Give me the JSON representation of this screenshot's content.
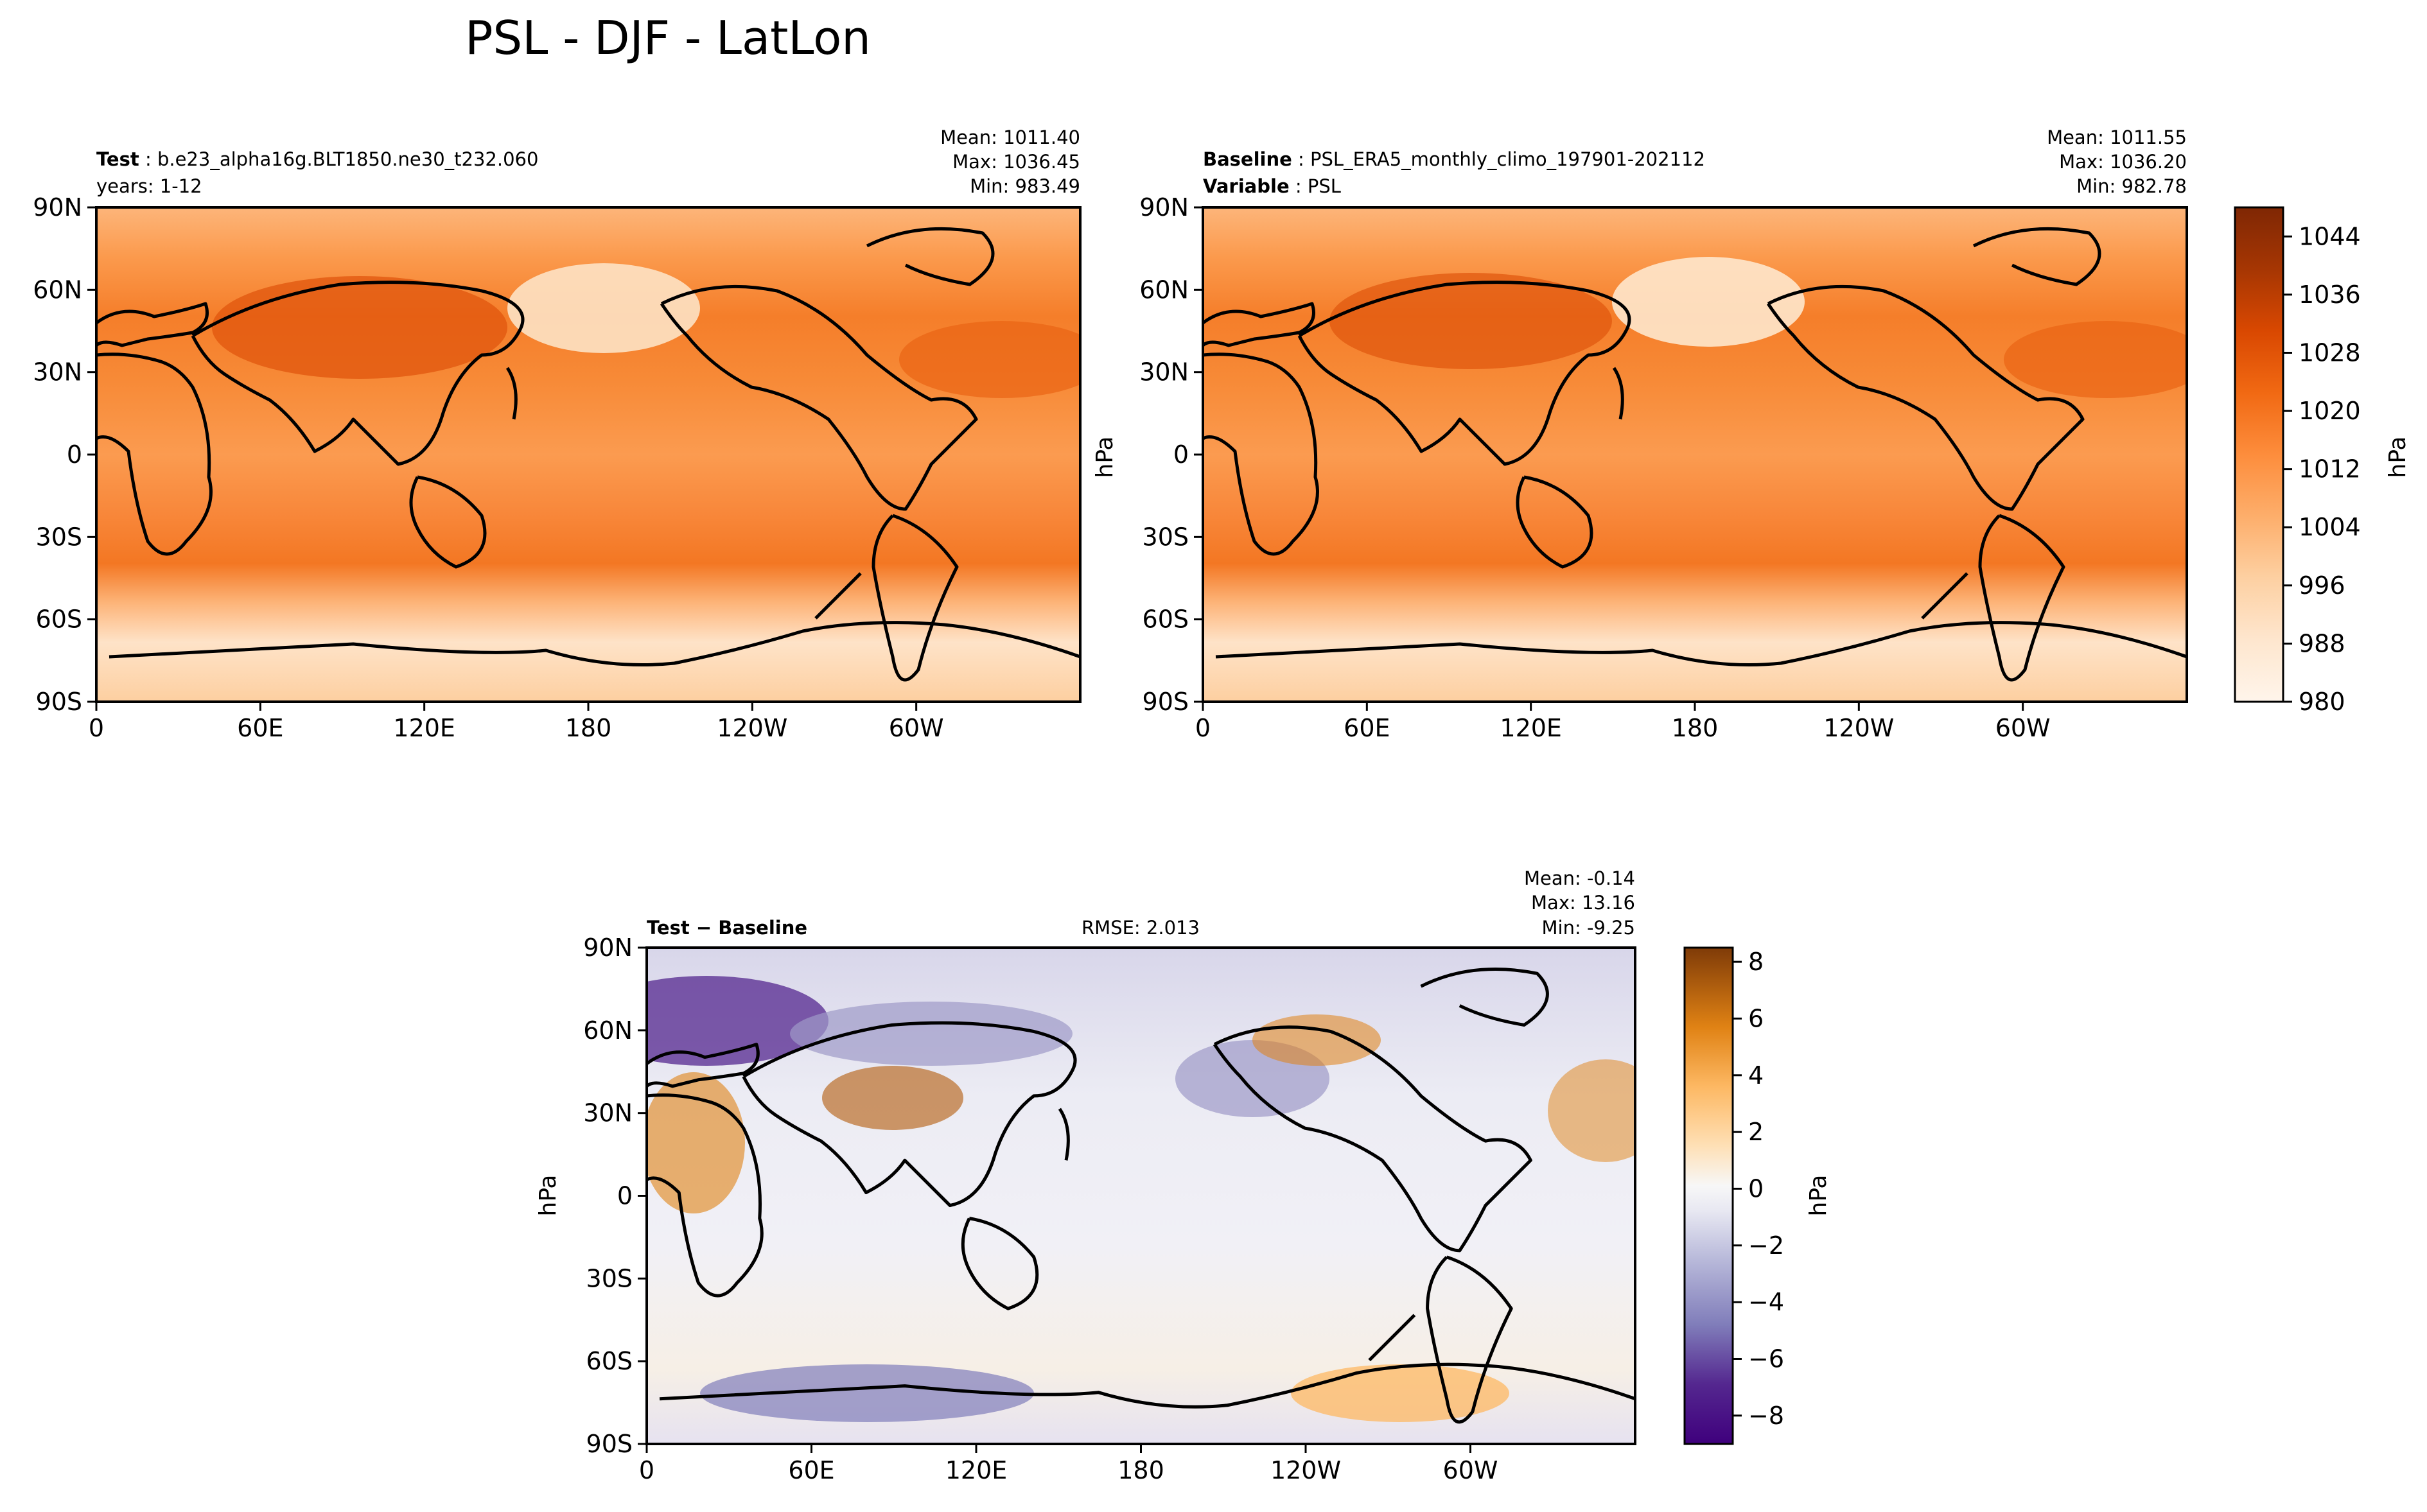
{
  "figure_title": "PSL - DJF - LatLon",
  "panels": {
    "test": {
      "label_bold": "Test",
      "label_value": "b.e23_alpha16g.BLT1850.ne30_t232.060",
      "line2": "years: 1-12",
      "stats": {
        "mean": "Mean: 1011.40",
        "max": "Max: 1036.45",
        "min": "Min: 983.49"
      }
    },
    "baseline": {
      "label_bold": "Baseline",
      "label_value": "PSL_ERA5_monthly_climo_197901-202112",
      "line2_bold": "Variable",
      "line2_value": "PSL",
      "stats": {
        "mean": "Mean: 1011.55",
        "max": "Max: 1036.20",
        "min": "Min: 982.78"
      }
    },
    "diff": {
      "label": "Test − Baseline",
      "rmse": "RMSE: 2.013",
      "stats": {
        "mean": "Mean: -0.14",
        "max": "Max: 13.16",
        "min": "Min: -9.25"
      }
    }
  },
  "colors": {
    "sequential": [
      "#fff5eb",
      "#fee6ce",
      "#fdd0a2",
      "#fdae6b",
      "#fd8d3c",
      "#f16913",
      "#d94801",
      "#a63603",
      "#7f2704"
    ],
    "diverging": [
      "#3f007d",
      "#6a51a3",
      "#9e9ac8",
      "#dadaeb",
      "#f7f7f7",
      "#fee0b6",
      "#fdb863",
      "#e08214",
      "#b35806",
      "#7f3b08"
    ]
  },
  "chart_data": [
    {
      "type": "heatmap",
      "name": "test",
      "title": "Test: b.e23_alpha16g.BLT1850.ne30_t232.060",
      "x_ticks": [
        "0",
        "60E",
        "120E",
        "180",
        "120W",
        "60W"
      ],
      "y_ticks": [
        "90N",
        "60N",
        "30N",
        "0",
        "30S",
        "60S",
        "90S"
      ],
      "xlim": [
        0,
        360
      ],
      "ylim": [
        -90,
        90
      ],
      "mean": 1011.4,
      "max": 1036.45,
      "min": 983.49,
      "units": "hPa"
    },
    {
      "type": "heatmap",
      "name": "baseline",
      "title": "Baseline: PSL_ERA5_monthly_climo_197901-202112",
      "x_ticks": [
        "0",
        "60E",
        "120E",
        "180",
        "120W",
        "60W"
      ],
      "y_ticks": [
        "90N",
        "60N",
        "30N",
        "0",
        "30S",
        "60S",
        "90S"
      ],
      "xlim": [
        0,
        360
      ],
      "ylim": [
        -90,
        90
      ],
      "mean": 1011.55,
      "max": 1036.2,
      "min": 982.78,
      "units": "hPa",
      "ylabel": "hPa",
      "colorbar": {
        "range": [
          980,
          1048
        ],
        "ticks": [
          "1044",
          "1036",
          "1028",
          "1020",
          "1012",
          "1004",
          "996",
          "988",
          "980"
        ],
        "label": "hPa"
      }
    },
    {
      "type": "heatmap",
      "name": "difference",
      "title": "Test − Baseline",
      "x_ticks": [
        "0",
        "60E",
        "120E",
        "180",
        "120W",
        "60W"
      ],
      "y_ticks": [
        "90N",
        "60N",
        "30N",
        "0",
        "30S",
        "60S",
        "90S"
      ],
      "xlim": [
        0,
        360
      ],
      "ylim": [
        -90,
        90
      ],
      "mean": -0.14,
      "max": 13.16,
      "min": -9.25,
      "rmse": 2.013,
      "units": "hPa",
      "ylabel": "hPa",
      "colorbar": {
        "range": [
          -9,
          8.5
        ],
        "ticks": [
          "8",
          "6",
          "4",
          "2",
          "0",
          "−2",
          "−4",
          "−6",
          "−8"
        ],
        "label": "hPa"
      }
    }
  ]
}
